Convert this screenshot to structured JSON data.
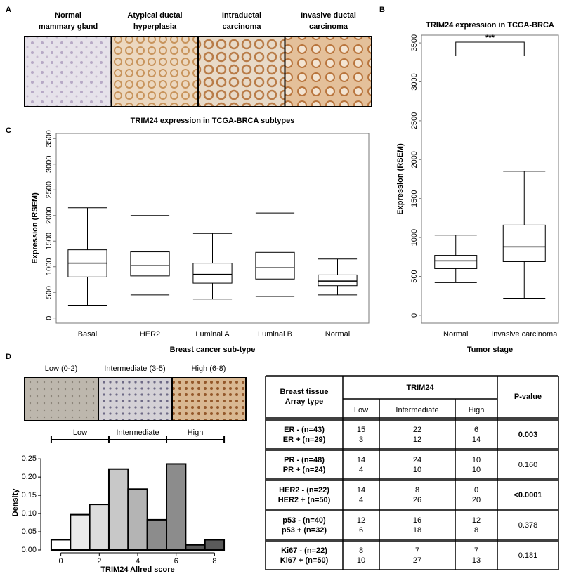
{
  "panel_labels": [
    "A",
    "B",
    "C",
    "D"
  ],
  "images_a": [
    {
      "caption": [
        "Normal",
        "mammary gland"
      ]
    },
    {
      "caption": [
        "Atypical ductal",
        "hyperplasia"
      ]
    },
    {
      "caption": [
        "Intraductal",
        "carcinoma"
      ]
    },
    {
      "caption": [
        "Invasive ductal",
        "carcinoma"
      ]
    }
  ],
  "images_d": [
    {
      "caption": [
        "Low (0-2)"
      ]
    },
    {
      "caption": [
        "Intermediate (3-5)"
      ]
    },
    {
      "caption": [
        "High (6-8)"
      ]
    }
  ],
  "chart_data": [
    {
      "type": "box",
      "title": "TRIM24 expression in TCGA-BRCA subtypes",
      "x_label": "Breast cancer sub-type",
      "y_label": "Expression (RSEM)",
      "categories": [
        "Basal",
        "HER2",
        "Luminal A",
        "Luminal B",
        "Normal"
      ],
      "boxes": [
        {
          "low": 250,
          "q1": 800,
          "median": 1070,
          "q3": 1330,
          "high": 2150
        },
        {
          "low": 450,
          "q1": 820,
          "median": 1020,
          "q3": 1290,
          "high": 2000
        },
        {
          "low": 370,
          "q1": 680,
          "median": 850,
          "q3": 1070,
          "high": 1650
        },
        {
          "low": 420,
          "q1": 760,
          "median": 980,
          "q3": 1280,
          "high": 2050
        },
        {
          "low": 450,
          "q1": 630,
          "median": 720,
          "q3": 840,
          "high": 1150
        }
      ],
      "ylim": [
        -100,
        3600
      ],
      "yticks": [
        0,
        500,
        1000,
        1500,
        2000,
        2500,
        3000,
        3500
      ]
    },
    {
      "type": "box",
      "title": "TRIM24 expression in TCGA-BRCA",
      "x_label": "Tumor stage",
      "y_label": "Expression (RSEM)",
      "categories": [
        "Normal",
        "Invasive carcinoma"
      ],
      "boxes": [
        {
          "low": 420,
          "q1": 600,
          "median": 700,
          "q3": 770,
          "high": 1030
        },
        {
          "low": 220,
          "q1": 690,
          "median": 880,
          "q3": 1160,
          "high": 1850
        }
      ],
      "annotation": "***",
      "ylim": [
        -100,
        3600
      ],
      "yticks": [
        0,
        500,
        1000,
        1500,
        2000,
        2500,
        3000,
        3500
      ]
    },
    {
      "type": "histogram",
      "x_label": "TRIM24 Allred score",
      "y_label": "Density",
      "bins": [
        -0.5,
        0.5,
        1.5,
        2.5,
        3.5,
        4.5,
        5.5,
        6.5,
        7.5,
        8.5
      ],
      "values": [
        0.028,
        0.097,
        0.125,
        0.222,
        0.167,
        0.083,
        0.236,
        0.014,
        0.028
      ],
      "colors": [
        "#ffffff",
        "#ebebeb",
        "#dcdcdc",
        "#c8c8c8",
        "#b4b4b4",
        "#8c8c8c",
        "#8c8c8c",
        "#5a5a5a",
        "#5a5a5a"
      ],
      "group_labels": [
        "Low",
        "Intermediate",
        "High"
      ],
      "xlim": [
        -0.9,
        8.9
      ],
      "xticks": [
        0,
        2,
        4,
        6,
        8
      ],
      "ylim": [
        0,
        0.26
      ],
      "yticks": [
        {
          "value": 0,
          "label": "0.00"
        },
        {
          "value": 0.05,
          "label": "0.05"
        },
        {
          "value": 0.1,
          "label": "0.10"
        },
        {
          "value": 0.15,
          "label": "0.15"
        },
        {
          "value": 0.2,
          "label": "0.20"
        },
        {
          "value": 0.25,
          "label": "0.25"
        }
      ]
    }
  ],
  "table": {
    "header": {
      "type": [
        "Breast tissue",
        "Array type"
      ],
      "group": "TRIM24",
      "levels": [
        "Low",
        "Intermediate",
        "High"
      ],
      "p": "P-value"
    },
    "rows": [
      {
        "type": [
          "ER - (n=43)",
          "ER + (n=29)"
        ],
        "cells": [
          [
            "15",
            "3"
          ],
          [
            "22",
            "12"
          ],
          [
            "6",
            "14"
          ]
        ],
        "p": "0.003",
        "bold": true
      },
      {
        "type": [
          "PR - (n=48)",
          "PR + (n=24)"
        ],
        "cells": [
          [
            "14",
            "4"
          ],
          [
            "24",
            "10"
          ],
          [
            "10",
            "10"
          ]
        ],
        "p": "0.160",
        "bold": false
      },
      {
        "type": [
          "HER2 - (n=22)",
          "HER2 + (n=50)"
        ],
        "cells": [
          [
            "14",
            "4"
          ],
          [
            "8",
            "26"
          ],
          [
            "0",
            "20"
          ]
        ],
        "p": "<0.0001",
        "bold": true
      },
      {
        "type": [
          "p53 - (n=40)",
          "p53 + (n=32)"
        ],
        "cells": [
          [
            "12",
            "6"
          ],
          [
            "16",
            "18"
          ],
          [
            "12",
            "8"
          ]
        ],
        "p": "0.378",
        "bold": false
      },
      {
        "type": [
          "Ki67 - (n=22)",
          "Ki67 + (n=50)"
        ],
        "cells": [
          [
            "8",
            "10"
          ],
          [
            "7",
            "27"
          ],
          [
            "7",
            "13"
          ]
        ],
        "p": "0.181",
        "bold": false
      }
    ]
  }
}
